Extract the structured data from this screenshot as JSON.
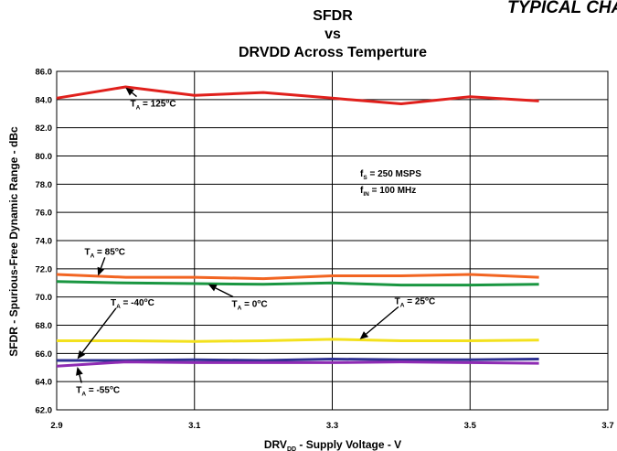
{
  "page": {
    "banner": "TYPICAL CHARACT"
  },
  "chart_data": {
    "type": "line",
    "title_lines": [
      "SFDR",
      "vs",
      "DRVDD Across Temperture"
    ],
    "xlabel": {
      "pre": "DRV",
      "sub": "DD",
      "post": " - Supply Voltage - V"
    },
    "ylabel": "SFDR - Spurious-Free Dynamic Range - dBc",
    "xlim": [
      2.9,
      3.7
    ],
    "ylim": [
      62.0,
      86.0
    ],
    "x_ticks": [
      2.9,
      3.1,
      3.3,
      3.5,
      3.7
    ],
    "x_tick_labels": [
      "2.9",
      "3.1",
      "3.3",
      "3.5",
      "3.7"
    ],
    "y_ticks": [
      62,
      64,
      66,
      68,
      70,
      72,
      74,
      76,
      78,
      80,
      82,
      84,
      86
    ],
    "y_tick_labels": [
      "62.0",
      "64.0",
      "66.0",
      "68.0",
      "70.0",
      "72.0",
      "74.0",
      "76.0",
      "78.0",
      "80.0",
      "82.0",
      "84.0",
      "86.0"
    ],
    "grid": true,
    "x": [
      2.9,
      3.0,
      3.1,
      3.2,
      3.3,
      3.4,
      3.5,
      3.6
    ],
    "series": [
      {
        "key": "t125",
        "color": "#e0201c",
        "values": [
          84.1,
          84.9,
          84.3,
          84.5,
          84.1,
          83.7,
          84.2,
          83.9
        ]
      },
      {
        "key": "t85",
        "color": "#f26522",
        "values": [
          71.6,
          71.4,
          71.4,
          71.3,
          71.5,
          71.5,
          71.6,
          71.4
        ]
      },
      {
        "key": "t0",
        "color": "#1a9641",
        "values": [
          71.1,
          71.0,
          70.95,
          70.9,
          71.0,
          70.85,
          70.85,
          70.9
        ]
      },
      {
        "key": "t25",
        "color": "#f3e11e",
        "values": [
          66.9,
          66.9,
          66.85,
          66.9,
          67.0,
          66.9,
          66.9,
          66.95
        ]
      },
      {
        "key": "tm40",
        "color": "#2e3192",
        "values": [
          65.5,
          65.5,
          65.55,
          65.5,
          65.6,
          65.55,
          65.55,
          65.6
        ]
      },
      {
        "key": "tm55",
        "color": "#8e2bb3",
        "values": [
          65.1,
          65.4,
          65.35,
          65.35,
          65.35,
          65.4,
          65.35,
          65.3
        ]
      }
    ],
    "annotations": [
      {
        "key": "t125",
        "pre": "T",
        "sub": "A",
        "mid": " = 125",
        "sup": "o",
        "post": "C",
        "x": 3.04,
        "y": 83.5,
        "arrow_to": [
          3.0,
          84.85
        ]
      },
      {
        "key": "t85",
        "pre": "T",
        "sub": "A",
        "mid": " = 85",
        "sup": "o",
        "post": "C",
        "x": 2.97,
        "y": 73.0,
        "arrow_to": [
          2.96,
          71.5
        ]
      },
      {
        "key": "t0",
        "pre": "T",
        "sub": "A",
        "mid": " = 0",
        "sup": "o",
        "post": "C",
        "x": 3.18,
        "y": 69.3,
        "arrow_to": [
          3.12,
          70.9
        ]
      },
      {
        "key": "t25",
        "pre": "T",
        "sub": "A",
        "mid": " = 25",
        "sup": "o",
        "post": "C",
        "x": 3.42,
        "y": 69.5,
        "arrow_to": [
          3.34,
          67.0
        ]
      },
      {
        "key": "tm40",
        "pre": "T",
        "sub": "A",
        "mid": " = -40",
        "sup": "o",
        "post": "C",
        "x": 3.01,
        "y": 69.4,
        "arrow_to": [
          2.93,
          65.6
        ]
      },
      {
        "key": "tm55",
        "pre": "T",
        "sub": "A",
        "mid": " = -55",
        "sup": "o",
        "post": "C",
        "x": 2.96,
        "y": 63.2,
        "arrow_to": [
          2.93,
          65.05
        ]
      }
    ],
    "conditions": [
      {
        "pre": "f",
        "sub": "S",
        "post": " = 250 MSPS"
      },
      {
        "pre": "f",
        "sub": "IN",
        "post": " = 100 MHz"
      }
    ]
  }
}
